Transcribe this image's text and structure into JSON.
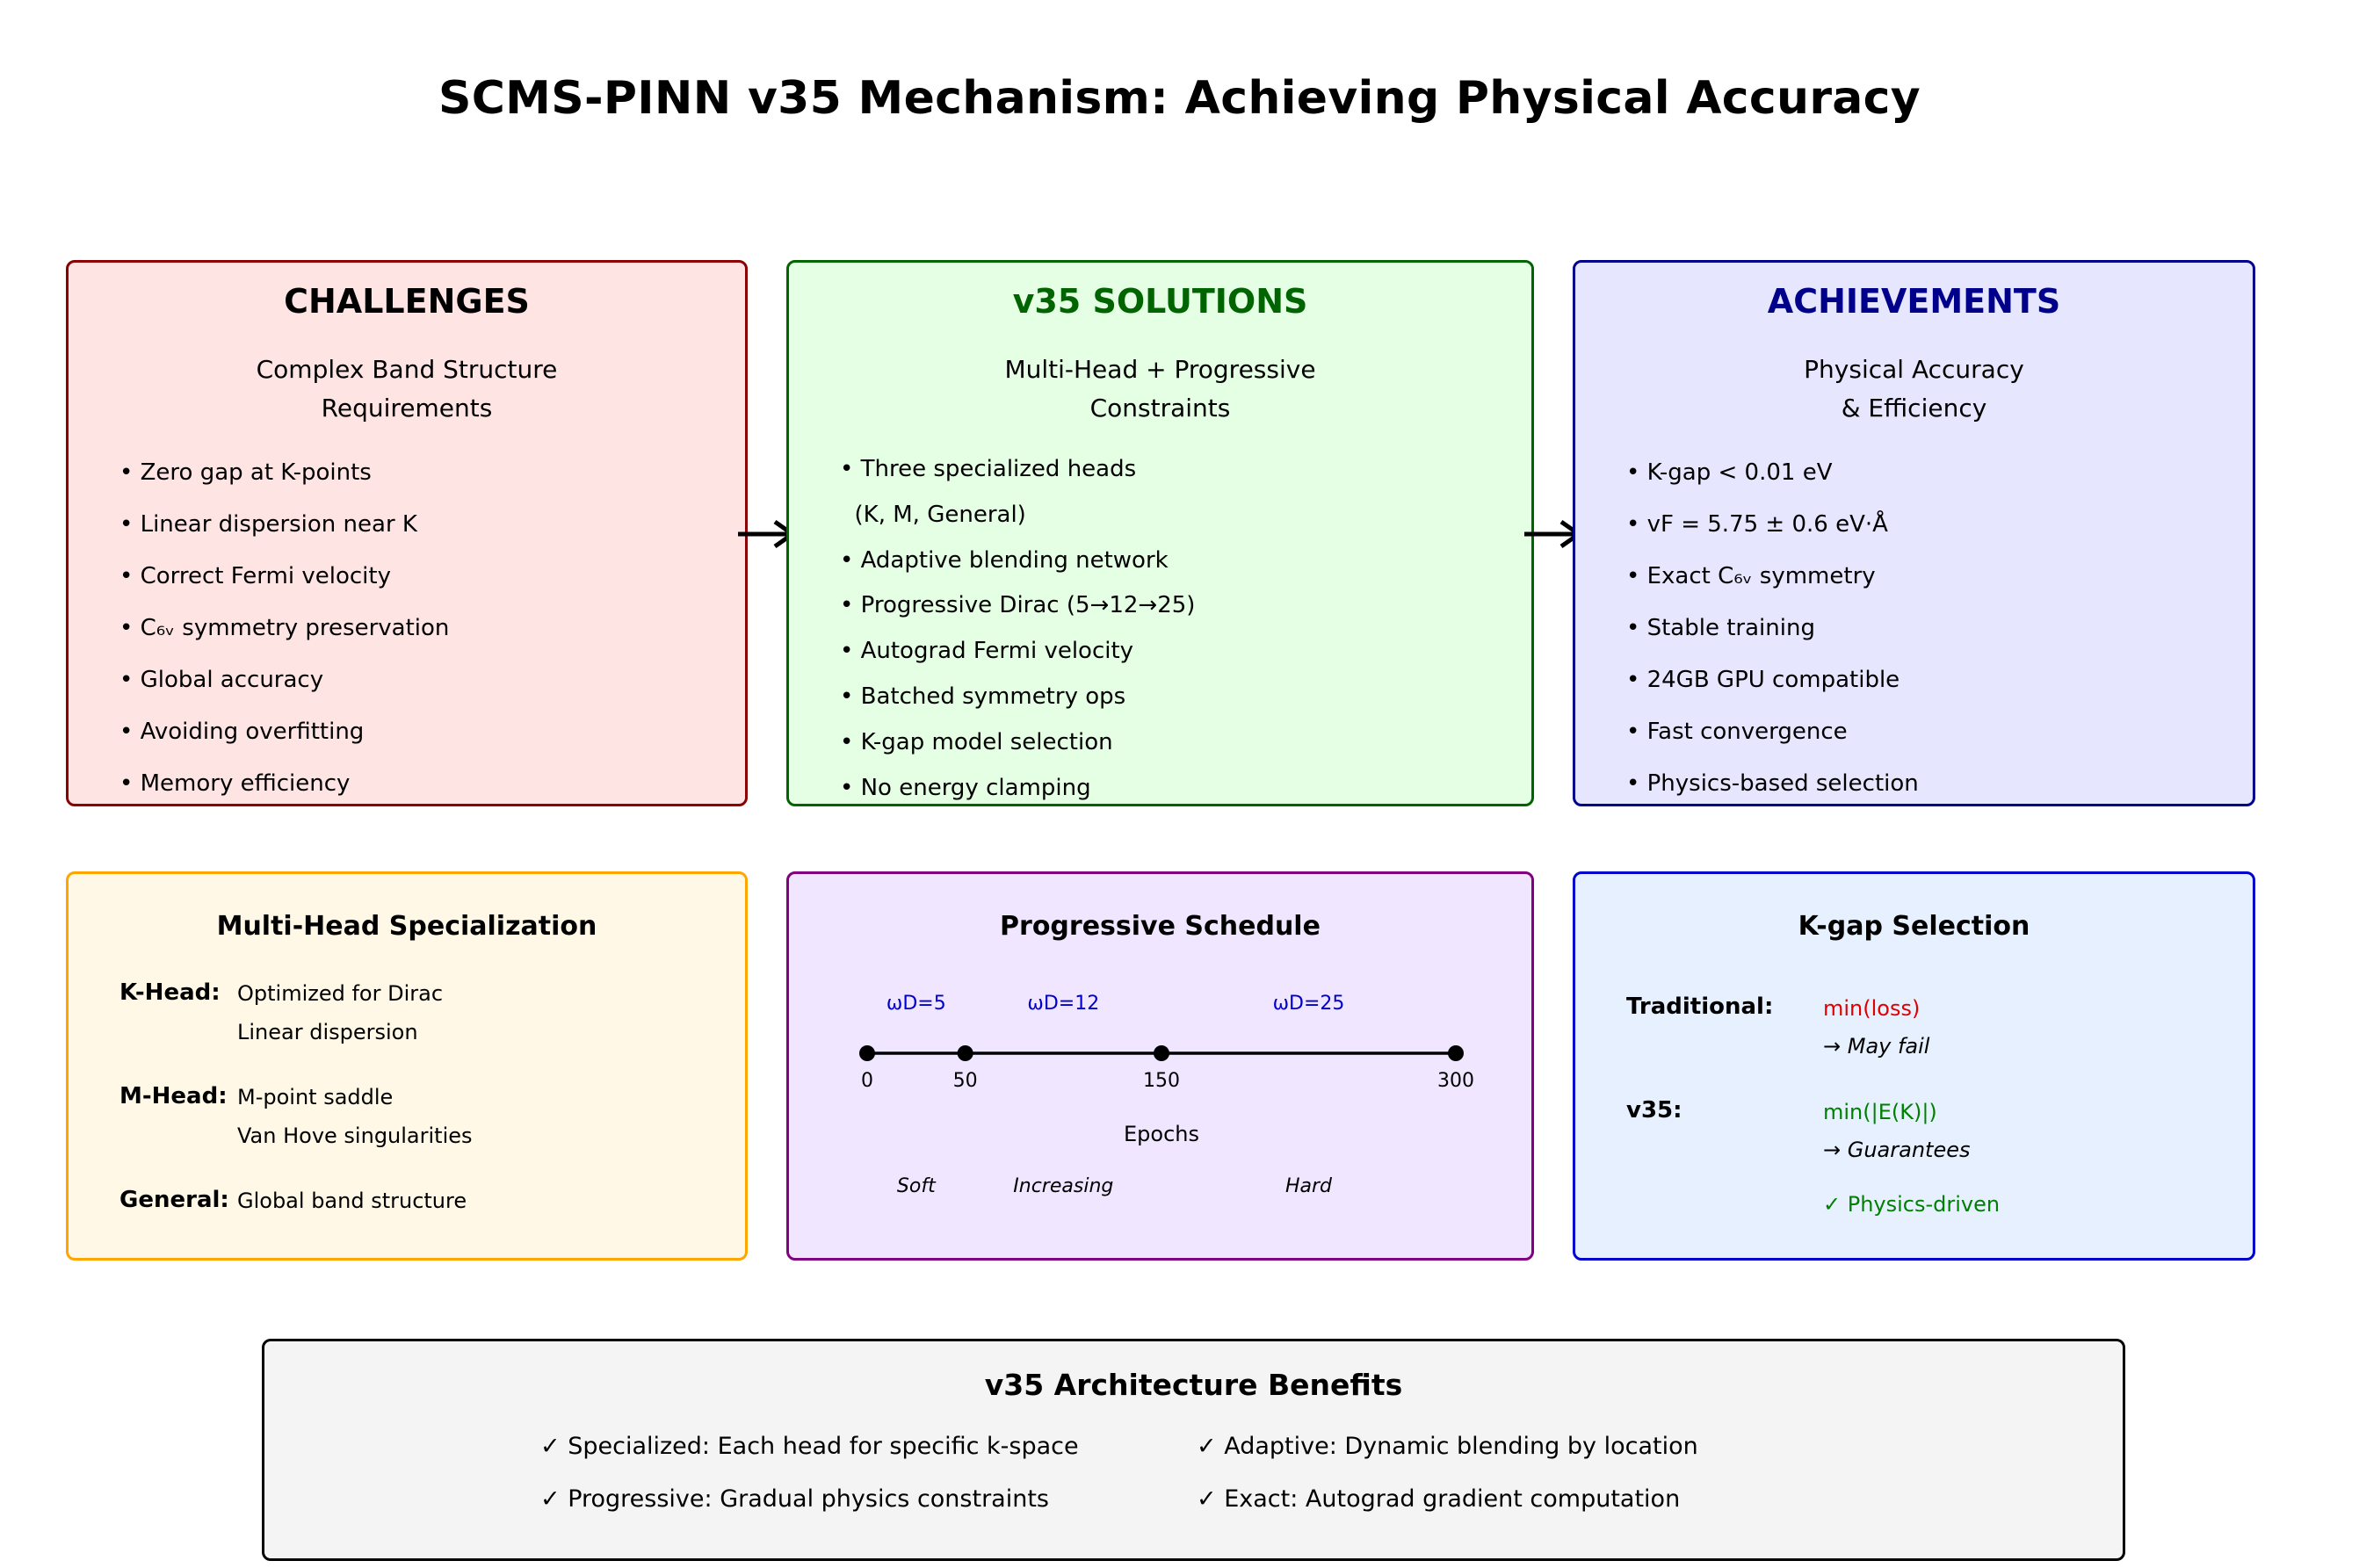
{
  "title": "SCMS-PINN v35 Mechanism: Achieving Physical Accuracy",
  "colors": {
    "challenges_border": "#8b0000",
    "challenges_bg": "#ffe4e4",
    "solutions_border": "#006400",
    "solutions_bg": "#e4ffe4",
    "solutions_title": "#006400",
    "achievements_border": "#00008b",
    "achievements_bg": "#e6e6ff",
    "achievements_title": "#00008b",
    "multihead_border": "#ffa500",
    "multihead_bg": "#fff8e6",
    "schedule_border": "#800080",
    "schedule_bg": "#f0e6ff",
    "schedule_accent": "#0000cc",
    "kgap_border": "#0000cd",
    "kgap_bg": "#e6f0ff",
    "traditional_color": "#e00000",
    "v35_color": "#008000",
    "benefits_border": "#000000",
    "benefits_bg": "#f4f4f4"
  },
  "challenges": {
    "title": "CHALLENGES",
    "subtitle_line1": "Complex Band Structure",
    "subtitle_line2": "Requirements",
    "items": [
      "• Zero gap at K-points",
      "• Linear dispersion near K",
      "• Correct Fermi velocity",
      "• C₆ᵥ symmetry preservation",
      "• Global accuracy",
      "• Avoiding overfitting",
      "• Memory efficiency"
    ]
  },
  "solutions": {
    "title": "v35 SOLUTIONS",
    "subtitle_line1": "Multi-Head + Progressive",
    "subtitle_line2": "Constraints",
    "items": [
      "• Three specialized heads",
      "  (K, M, General)",
      "• Adaptive blending network",
      "• Progressive Dirac (5→12→25)",
      "• Autograd Fermi velocity",
      "• Batched symmetry ops",
      "• K-gap model selection",
      "• No energy clamping"
    ]
  },
  "achievements": {
    "title": "ACHIEVEMENTS",
    "subtitle_line1": "Physical Accuracy",
    "subtitle_line2": "& Efficiency",
    "items": [
      "• K-gap < 0.01 eV",
      "• vF = 5.75 ± 0.6 eV·Å",
      "• Exact C₆ᵥ symmetry",
      "• Stable training",
      "• 24GB GPU compatible",
      "• Fast convergence",
      "• Physics-based selection"
    ]
  },
  "multihead": {
    "title": "Multi-Head Specialization",
    "k_label": "K-Head:",
    "k_line1": "Optimized for Dirac",
    "k_line2": "Linear dispersion",
    "m_label": "M-Head:",
    "m_line1": "M-point saddle",
    "m_line2": "Van Hove singularities",
    "g_label": "General:",
    "g_line1": "Global band structure"
  },
  "schedule": {
    "title": "Progressive Schedule",
    "axis_label": "Epochs",
    "chart_data": {
      "type": "line",
      "x": [
        0,
        50,
        150,
        300
      ],
      "tick_labels": [
        "0",
        "50",
        "150",
        "300"
      ],
      "stages": [
        {
          "weight_label": "ωD=5",
          "phase": "Soft",
          "from": 0,
          "to": 50,
          "weight": 5
        },
        {
          "weight_label": "ωD=12",
          "phase": "Increasing",
          "from": 50,
          "to": 150,
          "weight": 12
        },
        {
          "weight_label": "ωD=25",
          "phase": "Hard",
          "from": 150,
          "to": 300,
          "weight": 25
        }
      ]
    }
  },
  "kgap": {
    "title": "K-gap Selection",
    "trad_label": "Traditional:",
    "trad_value": "min(loss)",
    "trad_note": "→ May fail",
    "v35_label": "v35:",
    "v35_value": "min(|E(K)|)",
    "v35_note": "→ Guarantees",
    "v35_check": "✓ Physics-driven"
  },
  "benefits": {
    "title": "v35 Architecture Benefits",
    "items": [
      "✓ Specialized: Each head for specific k-space",
      "✓ Adaptive: Dynamic blending by location",
      "✓ Progressive: Gradual physics constraints",
      "✓ Exact: Autograd gradient computation"
    ]
  }
}
